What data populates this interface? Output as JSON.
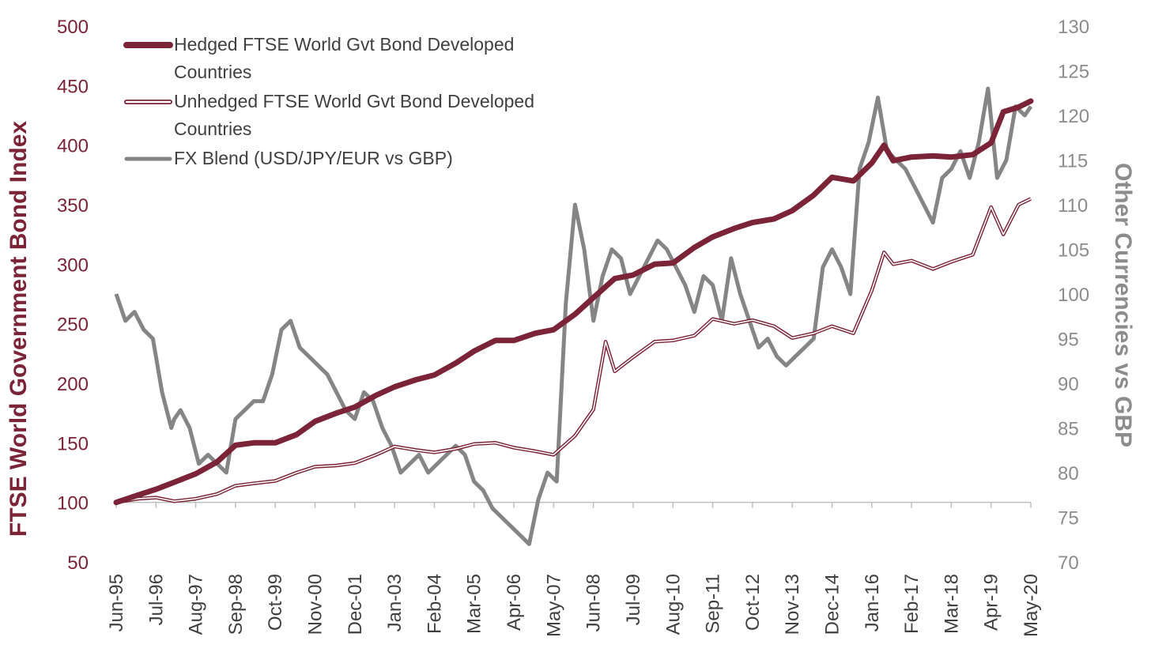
{
  "chart_data": {
    "type": "line",
    "colors": {
      "hedged": "#7b2437",
      "unhedged": "#7b2437",
      "fx": "#858585",
      "left_axis_text": "#7b2437",
      "right_axis_text": "#8c8c8c"
    },
    "ylabel": "FTSE World Government Bond Index",
    "y2label": "Other Currencies vs GBP",
    "ylim": [
      50,
      500
    ],
    "y2lim": [
      70,
      130
    ],
    "y_ticks": [
      "50",
      "100",
      "150",
      "200",
      "250",
      "300",
      "350",
      "400",
      "450",
      "500"
    ],
    "y2_ticks": [
      "70",
      "75",
      "80",
      "85",
      "90",
      "95",
      "100",
      "105",
      "110",
      "115",
      "120",
      "125",
      "130"
    ],
    "x_ticks": [
      "Jun-95",
      "Jul-96",
      "Aug-97",
      "Sep-98",
      "Oct-99",
      "Nov-00",
      "Dec-01",
      "Jan-03",
      "Feb-04",
      "Mar-05",
      "Apr-06",
      "May-07",
      "Jun-08",
      "Jul-09",
      "Aug-10",
      "Sep-11",
      "Oct-12",
      "Nov-13",
      "Dec-14",
      "Jan-16",
      "Feb-17",
      "Mar-18",
      "Apr-19",
      "May-20"
    ],
    "grid": false,
    "legend_position": "top-left",
    "legend": [
      {
        "key": "hedged",
        "line1": "Hedged FTSE World Gvt Bond Developed",
        "line2": "Countries"
      },
      {
        "key": "unhedged",
        "line1": "Unhedged FTSE World Gvt Bond Developed",
        "line2": "Countries"
      },
      {
        "key": "fx",
        "line1": "FX Blend (USD/JPY/EUR vs GBP)",
        "line2": ""
      }
    ],
    "series": [
      {
        "key": "hedged",
        "name": "Hedged FTSE World Gvt Bond Developed Countries",
        "axis": "left",
        "style": "thick",
        "x": [
          "1995-06",
          "1996-01",
          "1996-07",
          "1997-01",
          "1997-08",
          "1998-03",
          "1998-09",
          "1999-03",
          "1999-10",
          "2000-05",
          "2000-11",
          "2001-06",
          "2001-12",
          "2002-07",
          "2003-01",
          "2003-08",
          "2004-02",
          "2004-09",
          "2005-03",
          "2005-10",
          "2006-04",
          "2006-11",
          "2007-05",
          "2007-12",
          "2008-06",
          "2009-01",
          "2009-07",
          "2010-02",
          "2010-08",
          "2011-03",
          "2011-09",
          "2012-04",
          "2012-10",
          "2013-05",
          "2013-11",
          "2014-06",
          "2014-12",
          "2015-07",
          "2016-01",
          "2016-05",
          "2016-08",
          "2017-02",
          "2017-09",
          "2018-03",
          "2018-10",
          "2019-04",
          "2019-08",
          "2020-01",
          "2020-05"
        ],
        "values": [
          100,
          106,
          111,
          117,
          124,
          134,
          148,
          150,
          150,
          157,
          168,
          175,
          180,
          190,
          197,
          203,
          207,
          217,
          227,
          236,
          236,
          242,
          245,
          258,
          272,
          288,
          291,
          300,
          301,
          314,
          323,
          330,
          335,
          338,
          345,
          358,
          373,
          370,
          385,
          400,
          387,
          390,
          391,
          390,
          392,
          402,
          428,
          432,
          437
        ]
      },
      {
        "key": "unhedged",
        "name": "Unhedged FTSE World Gvt Bond Developed Countries",
        "axis": "left",
        "style": "double",
        "x": [
          "1995-06",
          "1996-01",
          "1996-07",
          "1997-01",
          "1997-08",
          "1998-03",
          "1998-09",
          "1999-03",
          "1999-10",
          "2000-05",
          "2000-11",
          "2001-06",
          "2001-12",
          "2002-07",
          "2003-01",
          "2003-08",
          "2004-02",
          "2004-09",
          "2005-03",
          "2005-10",
          "2006-04",
          "2006-11",
          "2007-05",
          "2007-12",
          "2008-06",
          "2008-10",
          "2009-01",
          "2009-07",
          "2010-02",
          "2010-08",
          "2011-03",
          "2011-09",
          "2012-04",
          "2012-10",
          "2013-05",
          "2013-11",
          "2014-06",
          "2014-12",
          "2015-07",
          "2016-01",
          "2016-05",
          "2016-08",
          "2017-02",
          "2017-09",
          "2018-03",
          "2018-10",
          "2019-04",
          "2019-08",
          "2020-01",
          "2020-05"
        ],
        "values": [
          100,
          103,
          104,
          101,
          103,
          107,
          114,
          116,
          118,
          125,
          130,
          131,
          133,
          140,
          147,
          144,
          142,
          145,
          149,
          150,
          146,
          143,
          140,
          156,
          178,
          235,
          210,
          222,
          235,
          236,
          240,
          254,
          250,
          253,
          248,
          238,
          242,
          248,
          242,
          278,
          310,
          300,
          303,
          296,
          302,
          308,
          348,
          325,
          350,
          355
        ]
      },
      {
        "key": "fx",
        "name": "FX Blend (USD/JPY/EUR vs GBP)",
        "axis": "right",
        "style": "line",
        "x": [
          "1995-06",
          "1995-09",
          "1995-12",
          "1996-03",
          "1996-06",
          "1996-09",
          "1996-12",
          "1997-01",
          "1997-03",
          "1997-06",
          "1997-09",
          "1997-12",
          "1998-03",
          "1998-06",
          "1998-09",
          "1998-12",
          "1999-03",
          "1999-06",
          "1999-09",
          "1999-12",
          "2000-03",
          "2000-06",
          "2000-09",
          "2000-12",
          "2001-03",
          "2001-06",
          "2001-09",
          "2001-12",
          "2002-03",
          "2002-06",
          "2002-09",
          "2002-12",
          "2003-03",
          "2003-06",
          "2003-09",
          "2003-12",
          "2004-03",
          "2004-06",
          "2004-09",
          "2004-12",
          "2005-03",
          "2005-06",
          "2005-09",
          "2005-12",
          "2006-03",
          "2006-06",
          "2006-09",
          "2006-12",
          "2007-03",
          "2007-06",
          "2007-09",
          "2007-12",
          "2008-03",
          "2008-06",
          "2008-09",
          "2008-12",
          "2009-03",
          "2009-06",
          "2009-09",
          "2009-12",
          "2010-03",
          "2010-06",
          "2010-09",
          "2010-12",
          "2011-03",
          "2011-06",
          "2011-09",
          "2011-12",
          "2012-03",
          "2012-06",
          "2012-09",
          "2012-12",
          "2013-03",
          "2013-06",
          "2013-09",
          "2013-12",
          "2014-03",
          "2014-06",
          "2014-09",
          "2014-12",
          "2015-03",
          "2015-06",
          "2015-09",
          "2015-12",
          "2016-03",
          "2016-06",
          "2016-09",
          "2016-12",
          "2017-03",
          "2017-06",
          "2017-09",
          "2017-12",
          "2018-03",
          "2018-06",
          "2018-09",
          "2018-12",
          "2019-03",
          "2019-06",
          "2019-09",
          "2019-12",
          "2020-03",
          "2020-05"
        ],
        "values": [
          100,
          97,
          98,
          96,
          95,
          89,
          85,
          86,
          87,
          85,
          81,
          82,
          81,
          80,
          86,
          87,
          88,
          88,
          91,
          96,
          97,
          94,
          93,
          92,
          91,
          89,
          87,
          86,
          89,
          88,
          85,
          83,
          80,
          81,
          82,
          80,
          81,
          82,
          83,
          82,
          79,
          78,
          76,
          75,
          74,
          73,
          72,
          77,
          80,
          79,
          99,
          110,
          105,
          97,
          102,
          105,
          104,
          100,
          102,
          104,
          106,
          105,
          103,
          101,
          98,
          102,
          101,
          97,
          104,
          100,
          97,
          94,
          95,
          93,
          92,
          93,
          94,
          95,
          103,
          105,
          103,
          100,
          114,
          117,
          122,
          116,
          115,
          114,
          112,
          110,
          108,
          113,
          114,
          116,
          113,
          117,
          123,
          113,
          115,
          121,
          120,
          121
        ]
      }
    ]
  }
}
